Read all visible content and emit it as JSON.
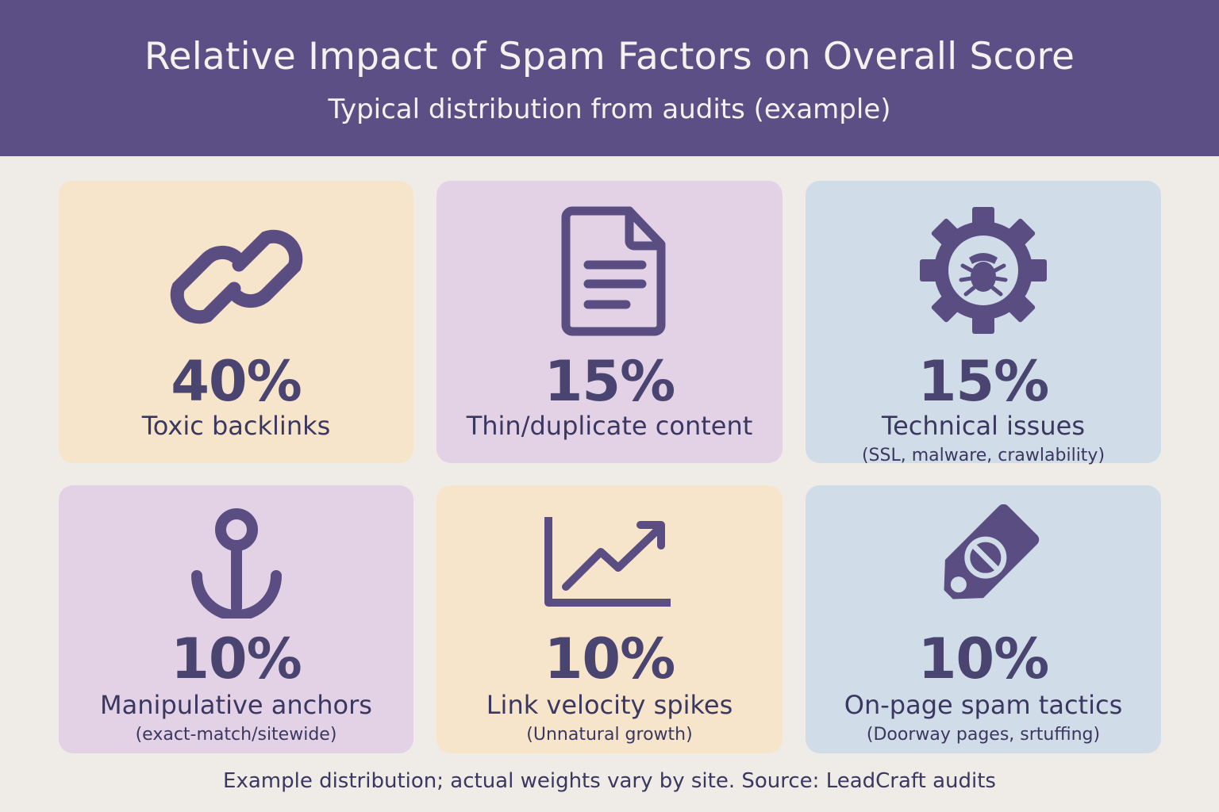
{
  "header": {
    "title": "Relative Impact of Spam Factors on Overall Score",
    "subtitle": "Typical distribution from audits (example)"
  },
  "colors": {
    "header_bg": "#5c4f85",
    "icon": "#594d82",
    "cream": "#f7e5cb",
    "lilac": "#e3d1e6",
    "blue": "#d0dce8",
    "page_bg": "#efebe6"
  },
  "factors": [
    {
      "icon": "link-icon",
      "percent": "40%",
      "label": "Toxic backlinks",
      "note": ""
    },
    {
      "icon": "document-icon",
      "percent": "15%",
      "label": "Thin/duplicate content",
      "note": ""
    },
    {
      "icon": "gear-bug-icon",
      "percent": "15%",
      "label": "Technical issues",
      "note": "(SSL, malware, crawlability)"
    },
    {
      "icon": "anchor-icon",
      "percent": "10%",
      "label": "Manipulative anchors",
      "note": "(exact-match/sitewide)"
    },
    {
      "icon": "trend-up-chart-icon",
      "percent": "10%",
      "label": "Link velocity spikes",
      "note": "(Unnatural growth)"
    },
    {
      "icon": "blocked-tag-icon",
      "percent": "10%",
      "label": "On-page spam tactics",
      "note": "(Doorway pages, srtuffing)"
    }
  ],
  "footer": {
    "note": "Example distribution; actual weights vary by site. Source: LeadCraft audits"
  }
}
